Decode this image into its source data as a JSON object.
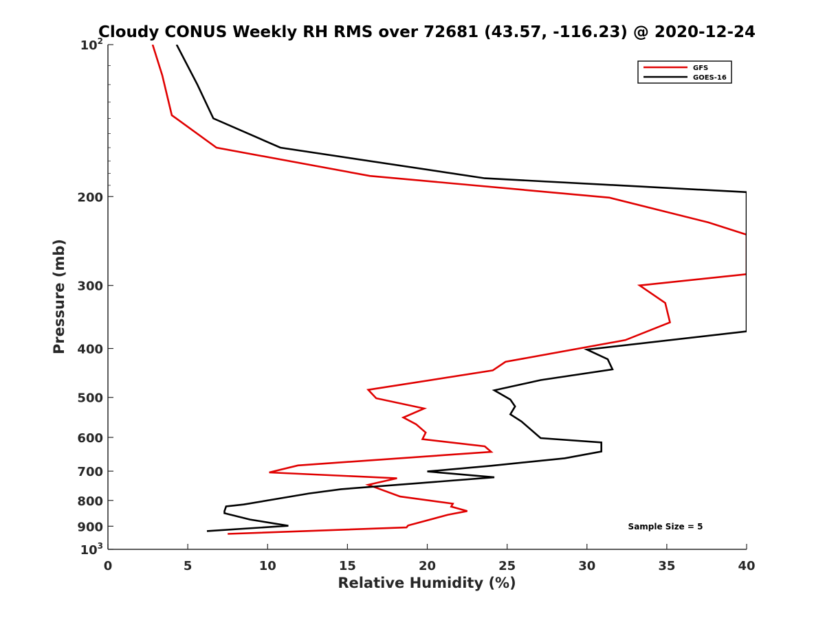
{
  "chart_data": {
    "type": "line",
    "title": "Cloudy CONUS Weekly RH RMS over 72681 (43.57, -116.23) @ 2020-12-24",
    "xlabel": "Relative Humidity (%)",
    "ylabel": "Pressure (mb)",
    "xlim": [
      0,
      40
    ],
    "ylim": [
      100,
      1000
    ],
    "y_scale": "log",
    "y_reversed": true,
    "x_ticks": [
      "0",
      "5",
      "10",
      "15",
      "20",
      "25",
      "30",
      "35",
      "40"
    ],
    "y_ticks": [
      {
        "value": 100,
        "base": "10",
        "exp": "2"
      },
      {
        "value": 200,
        "label": "200"
      },
      {
        "value": 300,
        "label": "300"
      },
      {
        "value": 400,
        "label": "400"
      },
      {
        "value": 500,
        "label": "500"
      },
      {
        "value": 600,
        "label": "600"
      },
      {
        "value": 700,
        "label": "700"
      },
      {
        "value": 800,
        "label": "800"
      },
      {
        "value": 900,
        "label": "900"
      },
      {
        "value": 1000,
        "base": "10",
        "exp": "3"
      }
    ],
    "grid": false,
    "legend_position": "top-right",
    "annotation": "Sample Size = 5",
    "series": [
      {
        "name": "GFS",
        "color": "#e00000",
        "points": [
          [
            2.8,
            100
          ],
          [
            3.4,
            115
          ],
          [
            4.0,
            138
          ],
          [
            6.8,
            160
          ],
          [
            16.4,
            182
          ],
          [
            31.4,
            201
          ],
          [
            37.6,
            225
          ],
          [
            40.0,
            238
          ],
          [
            40.0,
            285
          ],
          [
            40.0,
            285
          ],
          [
            33.3,
            300
          ],
          [
            34.9,
            325
          ],
          [
            35.2,
            355
          ],
          [
            32.4,
            385
          ],
          [
            24.9,
            425
          ],
          [
            24.1,
            442
          ],
          [
            16.3,
            483
          ],
          [
            16.8,
            502
          ],
          [
            19.8,
            526
          ],
          [
            18.5,
            548
          ],
          [
            19.3,
            565
          ],
          [
            19.9,
            587
          ],
          [
            19.7,
            605
          ],
          [
            23.6,
            625
          ],
          [
            24.0,
            641
          ],
          [
            11.9,
            682
          ],
          [
            10.1,
            704
          ],
          [
            18.1,
            723
          ],
          [
            16.3,
            745
          ],
          [
            16.8,
            755
          ],
          [
            18.3,
            786
          ],
          [
            21.6,
            812
          ],
          [
            21.5,
            823
          ],
          [
            22.5,
            840
          ],
          [
            21.3,
            854
          ],
          [
            18.8,
            897
          ],
          [
            18.7,
            905
          ],
          [
            7.5,
            932
          ]
        ]
      },
      {
        "name": "GOES-16",
        "color": "#000000",
        "points": [
          [
            4.3,
            100
          ],
          [
            5.6,
            120
          ],
          [
            6.6,
            140
          ],
          [
            10.8,
            160
          ],
          [
            23.6,
            184
          ],
          [
            40.0,
            196
          ],
          [
            40.0,
            370
          ],
          [
            30.0,
            402
          ],
          [
            31.3,
            420
          ],
          [
            31.6,
            440
          ],
          [
            27.1,
            462
          ],
          [
            24.2,
            484
          ],
          [
            25.2,
            505
          ],
          [
            25.5,
            521
          ],
          [
            25.2,
            540
          ],
          [
            25.9,
            558
          ],
          [
            27.1,
            602
          ],
          [
            30.9,
            614
          ],
          [
            30.9,
            640
          ],
          [
            28.6,
            660
          ],
          [
            24.0,
            683
          ],
          [
            20.0,
            701
          ],
          [
            24.2,
            720
          ],
          [
            14.6,
            760
          ],
          [
            12.6,
            775
          ],
          [
            8.5,
            815
          ],
          [
            7.4,
            822
          ],
          [
            7.3,
            840
          ],
          [
            7.3,
            848
          ],
          [
            8.9,
            873
          ],
          [
            11.3,
            898
          ],
          [
            6.2,
            920
          ]
        ]
      }
    ]
  }
}
